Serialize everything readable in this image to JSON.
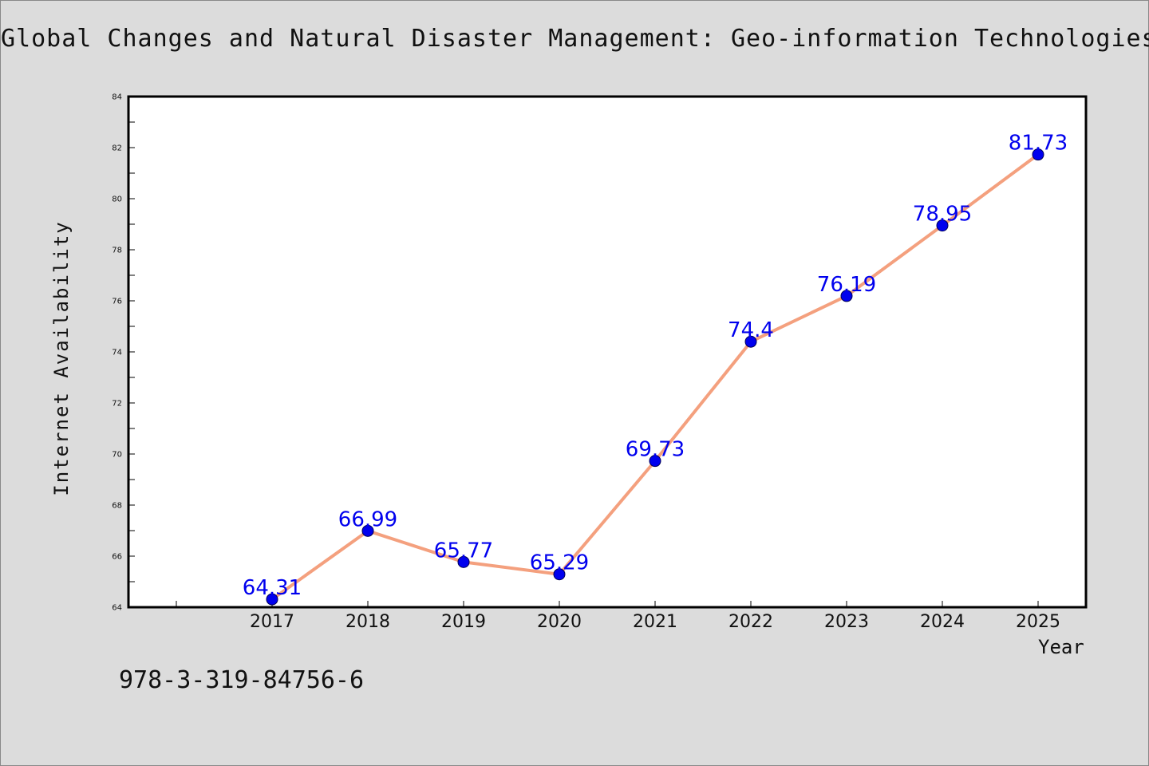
{
  "chart_data": {
    "type": "line",
    "title": "Global Changes and Natural Disaster Management: Geo-information Technologies",
    "xlabel": "Year",
    "ylabel": "Internet Availability",
    "categories": [
      "2017",
      "2018",
      "2019",
      "2020",
      "2021",
      "2022",
      "2023",
      "2024",
      "2025"
    ],
    "series": [
      {
        "values": [
          64.31,
          66.99,
          65.77,
          65.29,
          69.73,
          74.4,
          76.19,
          78.95,
          81.73
        ],
        "labels": [
          "64.31",
          "66.99",
          "65.77",
          "65.29",
          "69.73",
          "74.4",
          "76.19",
          "78.95",
          "81.73"
        ],
        "line_color": "#f4a07e",
        "marker_color": "#0000ee",
        "label_color": "#0000ee"
      }
    ],
    "y_ticks": [
      "64",
      "66",
      "68",
      "70",
      "72",
      "74",
      "76",
      "78",
      "80",
      "82",
      "84"
    ],
    "ylim": [
      64,
      84
    ],
    "grid": false,
    "legend": "none"
  },
  "footer_text": "978-3-319-84756-6"
}
